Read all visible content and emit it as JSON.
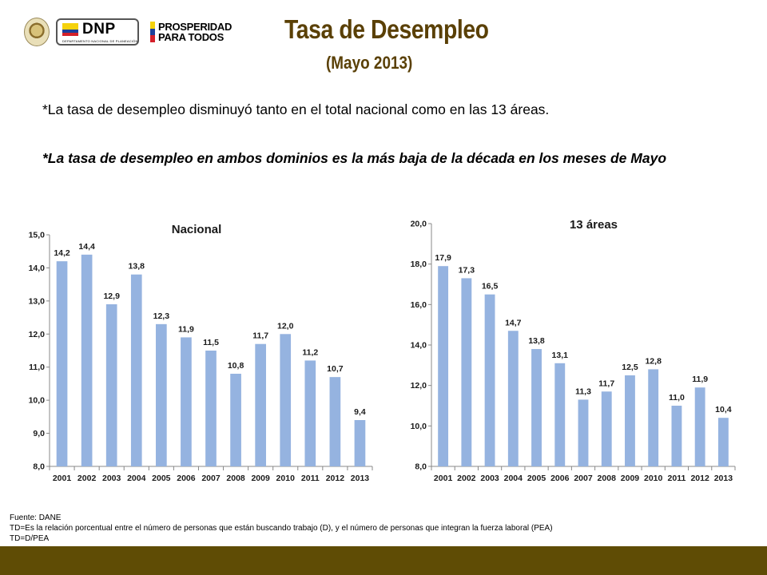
{
  "header": {
    "logo_dnp": "DNP",
    "logo_dnp_sub": "DEPARTAMENTO NACIONAL DE PLANEACIÓN",
    "logo_prosperidad_line1": "PROSPERIDAD",
    "logo_prosperidad_line2": "PARA TODOS",
    "title": "Tasa de Desempleo",
    "subtitle": "(Mayo 2013)"
  },
  "text": {
    "para1": "*La tasa de desempleo disminuyó tanto en el total nacional como en las 13 áreas.",
    "para2": "*La tasa de desempleo en ambos dominios es la más baja de la década en los meses de Mayo"
  },
  "colors": {
    "title": "#5a4006",
    "bar": "#95b3e0",
    "footer_bar": "#5f4c05"
  },
  "chart_data": [
    {
      "type": "bar",
      "title": "Nacional",
      "categories": [
        "2001",
        "2002",
        "2003",
        "2004",
        "2005",
        "2006",
        "2007",
        "2008",
        "2009",
        "2010",
        "2011",
        "2012",
        "2013"
      ],
      "values": [
        14.2,
        14.4,
        12.9,
        13.8,
        12.3,
        11.9,
        11.5,
        10.8,
        11.7,
        12.0,
        11.2,
        10.7,
        9.4
      ],
      "value_labels": [
        "14,2",
        "14,4",
        "12,9",
        "13,8",
        "12,3",
        "11,9",
        "11,5",
        "10,8",
        "11,7",
        "12,0",
        "11,2",
        "10,7",
        "9,4"
      ],
      "ylim": [
        8,
        15
      ],
      "yticks": [
        8,
        9,
        10,
        11,
        12,
        13,
        14,
        15
      ],
      "ytick_labels": [
        "8,0",
        "9,0",
        "10,0",
        "11,0",
        "12,0",
        "13,0",
        "14,0",
        "15,0"
      ],
      "grid": false,
      "legend": "none"
    },
    {
      "type": "bar",
      "title": "13 áreas",
      "categories": [
        "2001",
        "2002",
        "2003",
        "2004",
        "2005",
        "2006",
        "2007",
        "2008",
        "2009",
        "2010",
        "2011",
        "2012",
        "2013"
      ],
      "values": [
        17.9,
        17.3,
        16.5,
        14.7,
        13.8,
        13.1,
        11.3,
        11.7,
        12.5,
        12.8,
        11.0,
        11.9,
        10.4
      ],
      "value_labels": [
        "17,9",
        "17,3",
        "16,5",
        "14,7",
        "13,8",
        "13,1",
        "11,3",
        "11,7",
        "12,5",
        "12,8",
        "11,0",
        "11,9",
        "10,4"
      ],
      "ylim": [
        8,
        20
      ],
      "yticks": [
        8,
        10,
        12,
        14,
        16,
        18,
        20
      ],
      "ytick_labels": [
        "8,0",
        "10,0",
        "12,0",
        "14,0",
        "16,0",
        "18,0",
        "20,0"
      ],
      "grid": false,
      "legend": "none"
    }
  ],
  "footer": {
    "source": "Fuente: DANE",
    "note": "TD=Es la relación porcentual entre el número de personas que están buscando trabajo (D), y el número de personas que integran la fuerza laboral (PEA)",
    "formula": " TD=D/PEA"
  }
}
